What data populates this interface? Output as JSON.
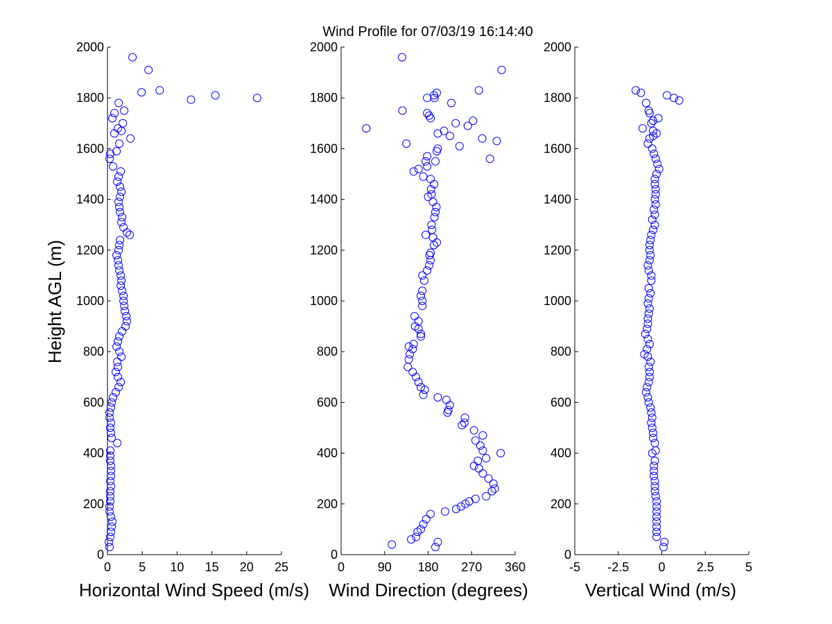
{
  "figure": {
    "title": "Wind Profile for  07/03/19 16:14:40"
  },
  "chart_data": [
    {
      "type": "scatter",
      "xlabel": "Horizontal Wind Speed (m/s)",
      "ylabel": "Height AGL (m)",
      "xlim": [
        0,
        25
      ],
      "ylim": [
        0,
        2000
      ],
      "xticks": [
        "0",
        "5",
        "10",
        "15",
        "20",
        "25"
      ],
      "yticks": [
        "0",
        "200",
        "400",
        "600",
        "800",
        "1000",
        "1200",
        "1400",
        "1600",
        "1800",
        "2000"
      ],
      "marker_color": "#0000ff",
      "points": [
        [
          0.3,
          30
        ],
        [
          0.2,
          50
        ],
        [
          0.4,
          70
        ],
        [
          0.5,
          90
        ],
        [
          0.6,
          110
        ],
        [
          0.7,
          130
        ],
        [
          0.5,
          150
        ],
        [
          0.3,
          170
        ],
        [
          0.3,
          190
        ],
        [
          0.4,
          210
        ],
        [
          0.4,
          230
        ],
        [
          0.4,
          250
        ],
        [
          0.5,
          270
        ],
        [
          0.4,
          290
        ],
        [
          0.5,
          310
        ],
        [
          0.5,
          330
        ],
        [
          0.5,
          350
        ],
        [
          0.4,
          370
        ],
        [
          0.4,
          390
        ],
        [
          0.4,
          410
        ],
        [
          1.4,
          440
        ],
        [
          0.6,
          460
        ],
        [
          0.5,
          480
        ],
        [
          0.4,
          500
        ],
        [
          0.5,
          520
        ],
        [
          0.3,
          540
        ],
        [
          0.3,
          560
        ],
        [
          0.5,
          580
        ],
        [
          0.6,
          600
        ],
        [
          0.8,
          620
        ],
        [
          1.2,
          640
        ],
        [
          1.6,
          660
        ],
        [
          1.9,
          680
        ],
        [
          1.5,
          700
        ],
        [
          1.2,
          720
        ],
        [
          1.5,
          740
        ],
        [
          1.4,
          760
        ],
        [
          2.0,
          780
        ],
        [
          1.7,
          800
        ],
        [
          1.3,
          820
        ],
        [
          1.5,
          840
        ],
        [
          1.7,
          860
        ],
        [
          2.1,
          880
        ],
        [
          2.6,
          900
        ],
        [
          2.8,
          920
        ],
        [
          2.7,
          940
        ],
        [
          2.5,
          960
        ],
        [
          2.4,
          980
        ],
        [
          2.3,
          1000
        ],
        [
          2.3,
          1020
        ],
        [
          2.1,
          1040
        ],
        [
          1.9,
          1060
        ],
        [
          2.0,
          1080
        ],
        [
          1.9,
          1100
        ],
        [
          1.7,
          1120
        ],
        [
          1.6,
          1140
        ],
        [
          1.5,
          1160
        ],
        [
          1.3,
          1180
        ],
        [
          1.6,
          1200
        ],
        [
          1.7,
          1220
        ],
        [
          1.8,
          1240
        ],
        [
          3.2,
          1260
        ],
        [
          2.8,
          1270
        ],
        [
          2.3,
          1290
        ],
        [
          2.0,
          1310
        ],
        [
          2.1,
          1330
        ],
        [
          1.8,
          1350
        ],
        [
          1.7,
          1370
        ],
        [
          1.6,
          1390
        ],
        [
          1.8,
          1410
        ],
        [
          2.0,
          1430
        ],
        [
          1.8,
          1450
        ],
        [
          1.4,
          1470
        ],
        [
          1.6,
          1490
        ],
        [
          1.9,
          1510
        ],
        [
          0.8,
          1530
        ],
        [
          0.3,
          1560
        ],
        [
          0.4,
          1580
        ],
        [
          1.3,
          1590
        ],
        [
          1.7,
          1620
        ],
        [
          3.3,
          1640
        ],
        [
          1.0,
          1660
        ],
        [
          2.0,
          1670
        ],
        [
          1.5,
          1680
        ],
        [
          2.2,
          1700
        ],
        [
          0.7,
          1720
        ],
        [
          2.4,
          1750
        ],
        [
          1.0,
          1740
        ],
        [
          1.6,
          1780
        ],
        [
          12.0,
          1793
        ],
        [
          21.5,
          1800
        ],
        [
          15.5,
          1810
        ],
        [
          7.5,
          1830
        ],
        [
          4.9,
          1822
        ],
        [
          5.9,
          1910
        ],
        [
          3.6,
          1960
        ]
      ]
    },
    {
      "type": "scatter",
      "xlabel": "Wind Direction (degrees)",
      "xlim": [
        0,
        360
      ],
      "ylim": [
        0,
        2000
      ],
      "xticks": [
        "0",
        "90",
        "180",
        "270",
        "360"
      ],
      "yticks": [
        "0",
        "200",
        "400",
        "600",
        "800",
        "1000",
        "1200",
        "1400",
        "1600",
        "1800",
        "2000"
      ],
      "marker_color": "#0000ff",
      "points": [
        [
          195,
          30
        ],
        [
          200,
          50
        ],
        [
          105,
          40
        ],
        [
          145,
          60
        ],
        [
          155,
          70
        ],
        [
          158,
          90
        ],
        [
          165,
          100
        ],
        [
          170,
          120
        ],
        [
          176,
          140
        ],
        [
          185,
          160
        ],
        [
          215,
          170
        ],
        [
          238,
          180
        ],
        [
          248,
          190
        ],
        [
          257,
          200
        ],
        [
          265,
          210
        ],
        [
          278,
          220
        ],
        [
          300,
          230
        ],
        [
          312,
          250
        ],
        [
          318,
          260
        ],
        [
          315,
          280
        ],
        [
          305,
          300
        ],
        [
          293,
          320
        ],
        [
          285,
          340
        ],
        [
          275,
          350
        ],
        [
          283,
          370
        ],
        [
          300,
          380
        ],
        [
          330,
          400
        ],
        [
          293,
          410
        ],
        [
          288,
          430
        ],
        [
          278,
          450
        ],
        [
          293,
          470
        ],
        [
          275,
          490
        ],
        [
          250,
          510
        ],
        [
          255,
          520
        ],
        [
          256,
          540
        ],
        [
          220,
          560
        ],
        [
          222,
          570
        ],
        [
          225,
          590
        ],
        [
          218,
          610
        ],
        [
          200,
          620
        ],
        [
          170,
          630
        ],
        [
          173,
          650
        ],
        [
          165,
          660
        ],
        [
          160,
          680
        ],
        [
          155,
          700
        ],
        [
          148,
          720
        ],
        [
          138,
          740
        ],
        [
          140,
          770
        ],
        [
          142,
          790
        ],
        [
          148,
          810
        ],
        [
          140,
          820
        ],
        [
          150,
          830
        ],
        [
          165,
          860
        ],
        [
          165,
          870
        ],
        [
          160,
          890
        ],
        [
          153,
          900
        ],
        [
          160,
          920
        ],
        [
          152,
          940
        ],
        [
          168,
          980
        ],
        [
          168,
          1000
        ],
        [
          165,
          1020
        ],
        [
          168,
          1040
        ],
        [
          172,
          1080
        ],
        [
          168,
          1100
        ],
        [
          178,
          1120
        ],
        [
          182,
          1140
        ],
        [
          185,
          1160
        ],
        [
          183,
          1180
        ],
        [
          185,
          1190
        ],
        [
          192,
          1220
        ],
        [
          198,
          1230
        ],
        [
          190,
          1250
        ],
        [
          175,
          1260
        ],
        [
          188,
          1280
        ],
        [
          187,
          1300
        ],
        [
          193,
          1330
        ],
        [
          195,
          1350
        ],
        [
          197,
          1370
        ],
        [
          190,
          1390
        ],
        [
          180,
          1410
        ],
        [
          187,
          1420
        ],
        [
          186,
          1440
        ],
        [
          192,
          1460
        ],
        [
          185,
          1480
        ],
        [
          170,
          1490
        ],
        [
          150,
          1510
        ],
        [
          160,
          1520
        ],
        [
          178,
          1530
        ],
        [
          175,
          1550
        ],
        [
          195,
          1550
        ],
        [
          178,
          1570
        ],
        [
          198,
          1590
        ],
        [
          200,
          1600
        ],
        [
          135,
          1620
        ],
        [
          245,
          1610
        ],
        [
          225,
          1650
        ],
        [
          200,
          1660
        ],
        [
          213,
          1670
        ],
        [
          52,
          1680
        ],
        [
          262,
          1690
        ],
        [
          237,
          1700
        ],
        [
          273,
          1710
        ],
        [
          185,
          1720
        ],
        [
          182,
          1730
        ],
        [
          178,
          1740
        ],
        [
          127,
          1750
        ],
        [
          228,
          1780
        ],
        [
          178,
          1800
        ],
        [
          193,
          1800
        ],
        [
          198,
          1820
        ],
        [
          192,
          1810
        ],
        [
          285,
          1830
        ],
        [
          308,
          1560
        ],
        [
          292,
          1640
        ],
        [
          322,
          1630
        ],
        [
          332,
          1910
        ],
        [
          126,
          1960
        ]
      ]
    },
    {
      "type": "scatter",
      "xlabel": "Vertical Wind (m/s)",
      "xlim": [
        -5,
        5
      ],
      "ylim": [
        0,
        2000
      ],
      "xticks": [
        "-5",
        "-2.5",
        "0",
        "2.5",
        "5"
      ],
      "yticks": [
        "0",
        "200",
        "400",
        "600",
        "800",
        "1000",
        "1200",
        "1400",
        "1600",
        "1800",
        "2000"
      ],
      "marker_color": "#0000ff",
      "points": [
        [
          0.1,
          30
        ],
        [
          0.15,
          50
        ],
        [
          -0.3,
          70
        ],
        [
          -0.3,
          90
        ],
        [
          -0.3,
          110
        ],
        [
          -0.3,
          130
        ],
        [
          -0.3,
          150
        ],
        [
          -0.3,
          170
        ],
        [
          -0.3,
          190
        ],
        [
          -0.3,
          210
        ],
        [
          -0.35,
          230
        ],
        [
          -0.4,
          250
        ],
        [
          -0.4,
          270
        ],
        [
          -0.4,
          290
        ],
        [
          -0.45,
          310
        ],
        [
          -0.45,
          330
        ],
        [
          -0.45,
          350
        ],
        [
          -0.4,
          370
        ],
        [
          -0.55,
          400
        ],
        [
          -0.35,
          410
        ],
        [
          -0.4,
          440
        ],
        [
          -0.5,
          460
        ],
        [
          -0.5,
          480
        ],
        [
          -0.55,
          500
        ],
        [
          -0.6,
          520
        ],
        [
          -0.55,
          540
        ],
        [
          -0.6,
          560
        ],
        [
          -0.65,
          580
        ],
        [
          -0.75,
          600
        ],
        [
          -0.8,
          620
        ],
        [
          -0.9,
          640
        ],
        [
          -0.85,
          660
        ],
        [
          -0.75,
          680
        ],
        [
          -0.7,
          700
        ],
        [
          -0.7,
          720
        ],
        [
          -0.75,
          740
        ],
        [
          -0.65,
          760
        ],
        [
          -0.8,
          780
        ],
        [
          -1.0,
          790
        ],
        [
          -0.85,
          810
        ],
        [
          -0.7,
          830
        ],
        [
          -0.8,
          850
        ],
        [
          -0.95,
          870
        ],
        [
          -0.85,
          890
        ],
        [
          -0.8,
          910
        ],
        [
          -0.8,
          930
        ],
        [
          -0.75,
          950
        ],
        [
          -0.7,
          970
        ],
        [
          -0.8,
          990
        ],
        [
          -0.75,
          1010
        ],
        [
          -0.65,
          1030
        ],
        [
          -0.75,
          1050
        ],
        [
          -0.6,
          1080
        ],
        [
          -0.6,
          1100
        ],
        [
          -0.75,
          1120
        ],
        [
          -0.8,
          1140
        ],
        [
          -0.7,
          1160
        ],
        [
          -0.65,
          1180
        ],
        [
          -0.7,
          1200
        ],
        [
          -0.7,
          1220
        ],
        [
          -0.65,
          1240
        ],
        [
          -0.6,
          1260
        ],
        [
          -0.5,
          1280
        ],
        [
          -0.4,
          1300
        ],
        [
          -0.55,
          1320
        ],
        [
          -0.4,
          1340
        ],
        [
          -0.45,
          1360
        ],
        [
          -0.35,
          1380
        ],
        [
          -0.4,
          1400
        ],
        [
          -0.35,
          1420
        ],
        [
          -0.35,
          1440
        ],
        [
          -0.4,
          1460
        ],
        [
          -0.4,
          1480
        ],
        [
          -0.3,
          1500
        ],
        [
          -0.15,
          1520
        ],
        [
          -0.25,
          1540
        ],
        [
          -0.35,
          1560
        ],
        [
          -0.45,
          1580
        ],
        [
          -0.55,
          1600
        ],
        [
          -0.8,
          1620
        ],
        [
          -0.7,
          1640
        ],
        [
          -0.5,
          1650
        ],
        [
          -0.3,
          1660
        ],
        [
          -0.5,
          1670
        ],
        [
          -1.1,
          1680
        ],
        [
          -0.6,
          1700
        ],
        [
          -0.5,
          1710
        ],
        [
          -0.2,
          1720
        ],
        [
          -0.7,
          1740
        ],
        [
          -0.75,
          1750
        ],
        [
          -0.9,
          1780
        ],
        [
          0.3,
          1810
        ],
        [
          0.7,
          1800
        ],
        [
          1.0,
          1790
        ],
        [
          -1.2,
          1820
        ],
        [
          -1.5,
          1830
        ]
      ]
    }
  ]
}
